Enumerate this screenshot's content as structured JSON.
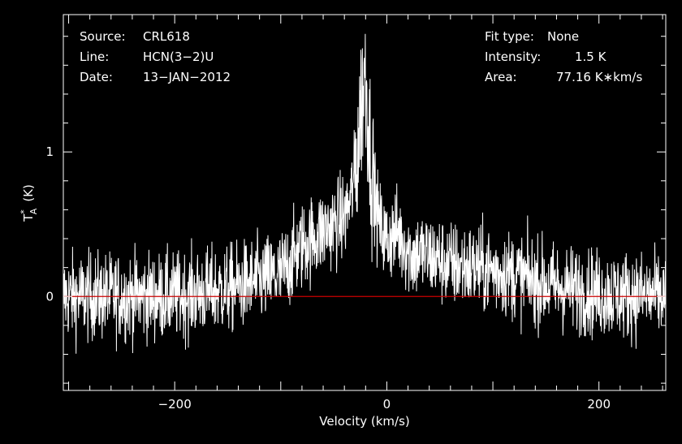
{
  "info": {
    "source_label": "Source:",
    "source_value": "CRL618",
    "line_label": "Line:",
    "line_value": "HCN(3−2)U",
    "date_label": "Date:",
    "date_value": "13−JAN−2012",
    "fit_label": "Fit type:",
    "fit_value": "None",
    "intensity_label": "Intensity:",
    "intensity_value": "1.5 K",
    "area_label": "Area:",
    "area_value": "77.16 K∗km/s"
  },
  "chart_data": {
    "type": "line",
    "title": "",
    "xlabel": "Velocity (km/s)",
    "ylabel_main": "T",
    "ylabel_sub": "A",
    "ylabel_sup": "*",
    "ylabel_unit": "(K)",
    "xlim": [
      -305,
      263
    ],
    "ylim": [
      -0.65,
      1.95
    ],
    "xticks": [
      {
        "value": -200,
        "label": "−200"
      },
      {
        "value": 0,
        "label": "0"
      },
      {
        "value": 200,
        "label": "200"
      }
    ],
    "yticks": [
      {
        "value": 0,
        "label": "0"
      },
      {
        "value": 1,
        "label": "1"
      }
    ],
    "baseline": {
      "value": 0,
      "color": "#cc0000"
    },
    "line_color": "#ffffff",
    "noise_rms": 0.15,
    "series": [
      {
        "x": [
          -305,
          -250,
          -200,
          -150,
          -100,
          -80,
          -60,
          -50,
          -40,
          -35,
          -30,
          -27,
          -25,
          -23,
          -21,
          -19,
          -17,
          -15,
          -12,
          -10,
          -5,
          0,
          5,
          10,
          15,
          20,
          25,
          30,
          40,
          60,
          80,
          100,
          120,
          150,
          200,
          263
        ],
        "y": [
          0.0,
          0.0,
          0.0,
          0.05,
          0.15,
          0.35,
          0.45,
          0.5,
          0.55,
          0.65,
          0.85,
          1.05,
          1.25,
          1.4,
          1.55,
          1.45,
          1.15,
          0.95,
          0.75,
          0.6,
          0.45,
          0.38,
          0.42,
          0.45,
          0.38,
          0.32,
          0.28,
          0.3,
          0.28,
          0.22,
          0.2,
          0.18,
          0.15,
          0.08,
          0.02,
          0.0
        ]
      }
    ]
  }
}
